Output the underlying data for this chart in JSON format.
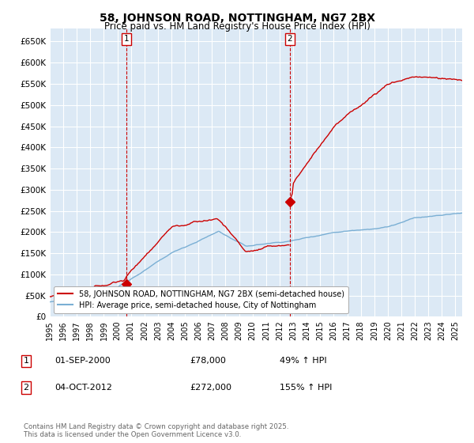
{
  "title": "58, JOHNSON ROAD, NOTTINGHAM, NG7 2BX",
  "subtitle": "Price paid vs. HM Land Registry's House Price Index (HPI)",
  "ylim": [
    0,
    680000
  ],
  "yticks": [
    0,
    50000,
    100000,
    150000,
    200000,
    250000,
    300000,
    350000,
    400000,
    450000,
    500000,
    550000,
    600000,
    650000
  ],
  "ytick_labels": [
    "£0",
    "£50K",
    "£100K",
    "£150K",
    "£200K",
    "£250K",
    "£300K",
    "£350K",
    "£400K",
    "£450K",
    "£500K",
    "£550K",
    "£600K",
    "£650K"
  ],
  "xlim_start": 1995.0,
  "xlim_end": 2025.5,
  "background_color": "#ffffff",
  "plot_bg_color": "#dce9f5",
  "grid_color": "#ffffff",
  "red_color": "#cc0000",
  "blue_color": "#7aafd4",
  "sale1_x": 2000.67,
  "sale1_y": 78000,
  "sale2_x": 2012.75,
  "sale2_y": 272000,
  "sale1_label": "1",
  "sale2_label": "2",
  "legend_line1": "58, JOHNSON ROAD, NOTTINGHAM, NG7 2BX (semi-detached house)",
  "legend_line2": "HPI: Average price, semi-detached house, City of Nottingham",
  "footer": "Contains HM Land Registry data © Crown copyright and database right 2025.\nThis data is licensed under the Open Government Licence v3.0.",
  "title_fontsize": 10,
  "subtitle_fontsize": 8.5,
  "tick_fontsize": 7.5
}
